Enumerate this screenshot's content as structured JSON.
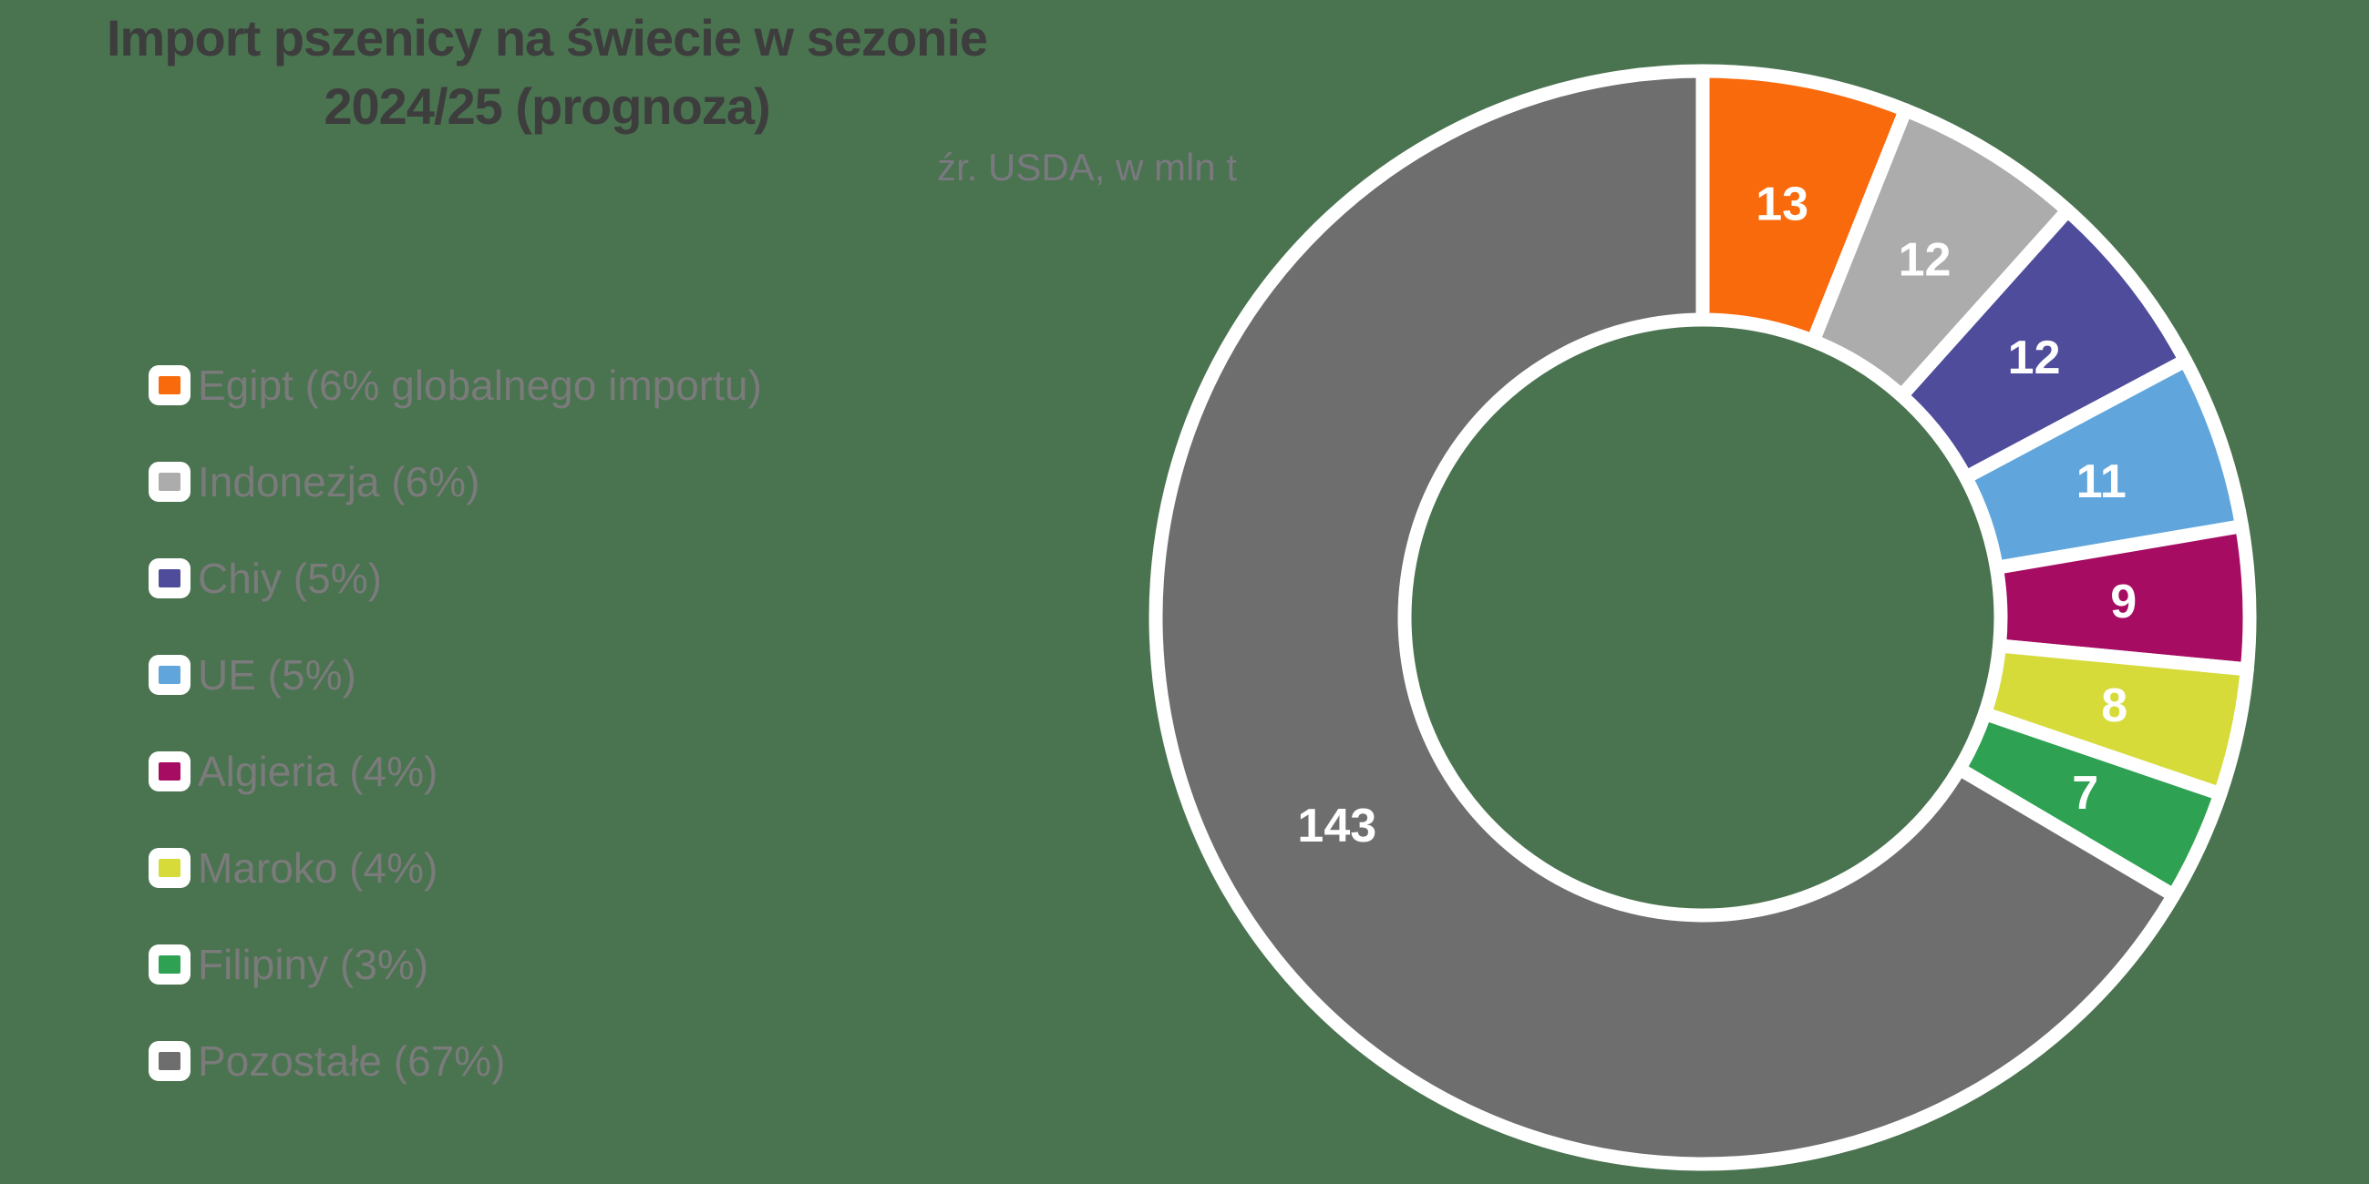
{
  "title": {
    "line1": "Import pszenicy na świecie w sezonie",
    "line2": "2024/25 (prognoza)"
  },
  "source_note": "źr. USDA, w mln t",
  "colors": {
    "background": "#4A7350",
    "title_text": "#3D3D3D",
    "muted_text": "#7B7B7B",
    "slice_border": "#FFFFFF",
    "value_label_text": "#FFFFFF",
    "legend_key_background": "#FFFFFF"
  },
  "chart_data": {
    "type": "pie",
    "subtype": "donut",
    "title": "Import pszenicy na świecie w sezonie 2024/25 (prognoza)",
    "source": "źr. USDA",
    "unit": "w mln t",
    "start_angle_deg": 0,
    "direction": "clockwise",
    "inner_radius_ratio": 0.545,
    "legend_position": "left",
    "total": 215,
    "series": [
      {
        "name": "Egipt",
        "legend_label": "Egipt (6% globalnego importu)",
        "value": 13,
        "percent": "6%",
        "color": "#F96A0C"
      },
      {
        "name": "Indonezja",
        "legend_label": "Indonezja (6%)",
        "value": 12,
        "percent": "6%",
        "color": "#ACACAC"
      },
      {
        "name": "Chiy",
        "legend_label": "Chiy (5%)",
        "value": 12,
        "percent": "5%",
        "color": "#4F4C9B"
      },
      {
        "name": "UE",
        "legend_label": "UE (5%)",
        "value": 11,
        "percent": "5%",
        "color": "#60A6DC"
      },
      {
        "name": "Algieria",
        "legend_label": "Algieria (4%)",
        "value": 9,
        "percent": "4%",
        "color": "#A60D62"
      },
      {
        "name": "Maroko",
        "legend_label": "Maroko (4%)",
        "value": 8,
        "percent": "4%",
        "color": "#D6DB3A"
      },
      {
        "name": "Filipiny",
        "legend_label": "Filipiny (3%)",
        "value": 7,
        "percent": "3%",
        "color": "#2FA152"
      },
      {
        "name": "Pozostałe",
        "legend_label": "Pozostałe (67%)",
        "value": 143,
        "percent": "67%",
        "color": "#6E6E6E"
      }
    ]
  }
}
